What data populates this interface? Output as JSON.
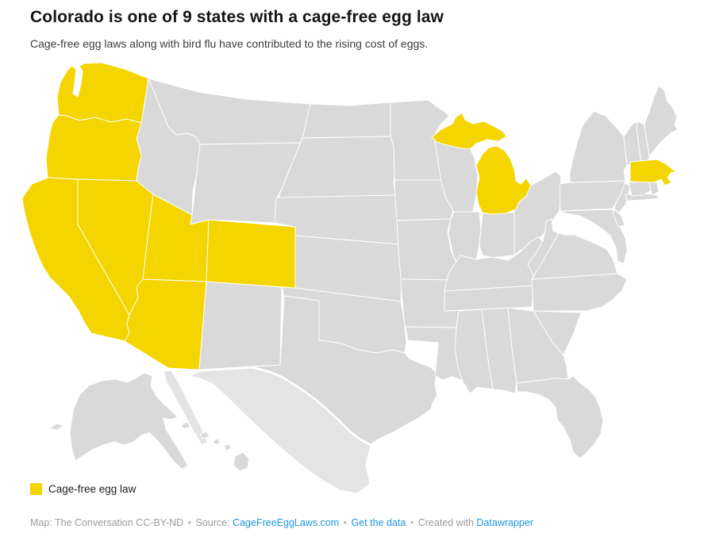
{
  "header": {
    "title": "Colorado is one of 9 states with a cage-free egg law",
    "subtitle": "Cage-free egg laws along with bird flu have contributed to the rising cost of eggs."
  },
  "legend": {
    "label": "Cage-free egg law"
  },
  "footer": {
    "attribution": "Map: The Conversation CC-BY-ND",
    "separator": "•",
    "source_label": "Source:",
    "source_link_label": "CageFreeEggLaws.com",
    "get_data_link_label": "Get the data",
    "created_with_label": "Created with",
    "created_with_link_label": "Datawrapper"
  },
  "colors": {
    "highlight": "#F4D500",
    "state_default": "#D9D9D9",
    "neighbor_land": "#E4E4E4",
    "border": "#FFFFFF",
    "link": "#1E96DC",
    "footer_text": "#9B9B9B"
  },
  "map": {
    "highlight_count": 9,
    "states": [
      {
        "abbr": "WA",
        "name": "Washington",
        "cage_free_law": true
      },
      {
        "abbr": "OR",
        "name": "Oregon",
        "cage_free_law": true
      },
      {
        "abbr": "CA",
        "name": "California",
        "cage_free_law": true
      },
      {
        "abbr": "NV",
        "name": "Nevada",
        "cage_free_law": true
      },
      {
        "abbr": "UT",
        "name": "Utah",
        "cage_free_law": true
      },
      {
        "abbr": "AZ",
        "name": "Arizona",
        "cage_free_law": true
      },
      {
        "abbr": "CO",
        "name": "Colorado",
        "cage_free_law": true
      },
      {
        "abbr": "MI",
        "name": "Michigan",
        "cage_free_law": true
      },
      {
        "abbr": "MA",
        "name": "Massachusetts",
        "cage_free_law": true
      },
      {
        "abbr": "ID",
        "name": "Idaho",
        "cage_free_law": false
      },
      {
        "abbr": "MT",
        "name": "Montana",
        "cage_free_law": false
      },
      {
        "abbr": "WY",
        "name": "Wyoming",
        "cage_free_law": false
      },
      {
        "abbr": "NM",
        "name": "New Mexico",
        "cage_free_law": false
      },
      {
        "abbr": "ND",
        "name": "North Dakota",
        "cage_free_law": false
      },
      {
        "abbr": "SD",
        "name": "South Dakota",
        "cage_free_law": false
      },
      {
        "abbr": "NE",
        "name": "Nebraska",
        "cage_free_law": false
      },
      {
        "abbr": "KS",
        "name": "Kansas",
        "cage_free_law": false
      },
      {
        "abbr": "OK",
        "name": "Oklahoma",
        "cage_free_law": false
      },
      {
        "abbr": "TX",
        "name": "Texas",
        "cage_free_law": false
      },
      {
        "abbr": "MN",
        "name": "Minnesota",
        "cage_free_law": false
      },
      {
        "abbr": "IA",
        "name": "Iowa",
        "cage_free_law": false
      },
      {
        "abbr": "MO",
        "name": "Missouri",
        "cage_free_law": false
      },
      {
        "abbr": "AR",
        "name": "Arkansas",
        "cage_free_law": false
      },
      {
        "abbr": "LA",
        "name": "Louisiana",
        "cage_free_law": false
      },
      {
        "abbr": "WI",
        "name": "Wisconsin",
        "cage_free_law": false
      },
      {
        "abbr": "IL",
        "name": "Illinois",
        "cage_free_law": false
      },
      {
        "abbr": "IN",
        "name": "Indiana",
        "cage_free_law": false
      },
      {
        "abbr": "OH",
        "name": "Ohio",
        "cage_free_law": false
      },
      {
        "abbr": "KY",
        "name": "Kentucky",
        "cage_free_law": false
      },
      {
        "abbr": "TN",
        "name": "Tennessee",
        "cage_free_law": false
      },
      {
        "abbr": "MS",
        "name": "Mississippi",
        "cage_free_law": false
      },
      {
        "abbr": "AL",
        "name": "Alabama",
        "cage_free_law": false
      },
      {
        "abbr": "GA",
        "name": "Georgia",
        "cage_free_law": false
      },
      {
        "abbr": "FL",
        "name": "Florida",
        "cage_free_law": false
      },
      {
        "abbr": "SC",
        "name": "South Carolina",
        "cage_free_law": false
      },
      {
        "abbr": "NC",
        "name": "North Carolina",
        "cage_free_law": false
      },
      {
        "abbr": "VA",
        "name": "Virginia",
        "cage_free_law": false
      },
      {
        "abbr": "WV",
        "name": "West Virginia",
        "cage_free_law": false
      },
      {
        "abbr": "MD",
        "name": "Maryland",
        "cage_free_law": false
      },
      {
        "abbr": "DE",
        "name": "Delaware",
        "cage_free_law": false
      },
      {
        "abbr": "NJ",
        "name": "New Jersey",
        "cage_free_law": false
      },
      {
        "abbr": "PA",
        "name": "Pennsylvania",
        "cage_free_law": false
      },
      {
        "abbr": "NY",
        "name": "New York",
        "cage_free_law": false
      },
      {
        "abbr": "CT",
        "name": "Connecticut",
        "cage_free_law": false
      },
      {
        "abbr": "RI",
        "name": "Rhode Island",
        "cage_free_law": false
      },
      {
        "abbr": "VT",
        "name": "Vermont",
        "cage_free_law": false
      },
      {
        "abbr": "NH",
        "name": "New Hampshire",
        "cage_free_law": false
      },
      {
        "abbr": "ME",
        "name": "Maine",
        "cage_free_law": false
      },
      {
        "abbr": "AK",
        "name": "Alaska",
        "cage_free_law": false
      },
      {
        "abbr": "HI",
        "name": "Hawaii",
        "cage_free_law": false
      }
    ]
  }
}
